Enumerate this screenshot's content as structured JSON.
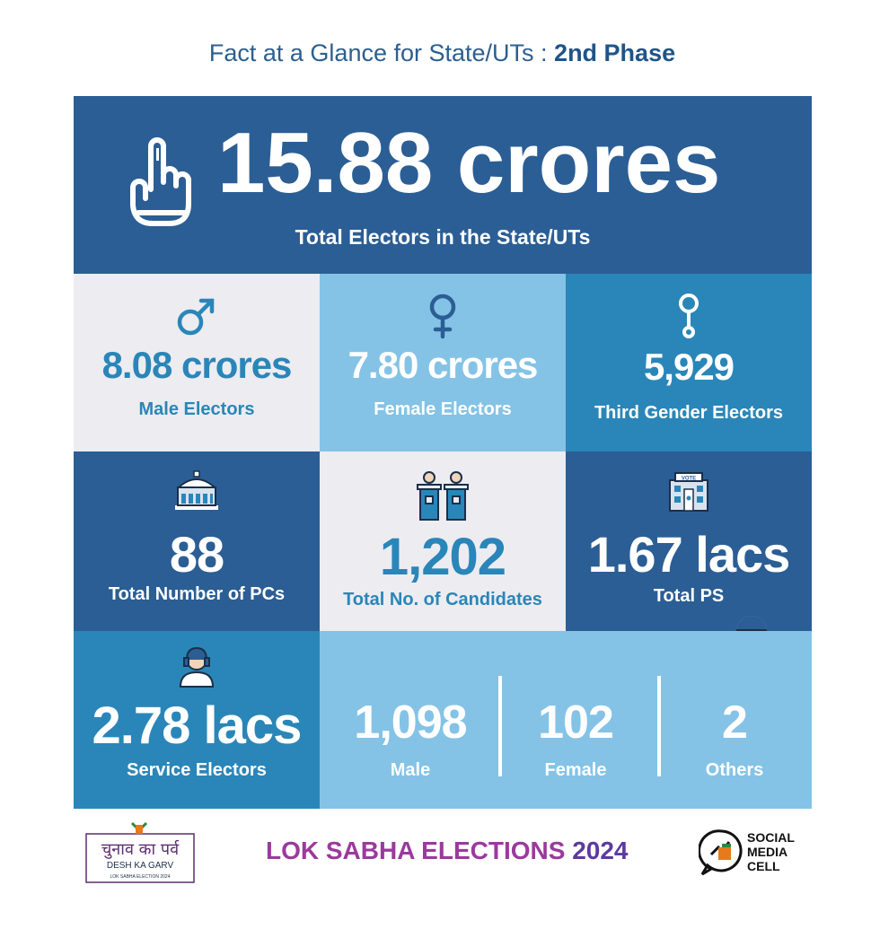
{
  "header": {
    "title_prefix": "Fact at a Glance for State/UTs : ",
    "title_bold": "2nd Phase"
  },
  "hero": {
    "value": "15.88 crores",
    "label": "Total Electors in the State/UTs",
    "icon": "voting-finger-icon"
  },
  "stats": {
    "male": {
      "value": "8.08 crores",
      "label": "Male Electors",
      "icon": "male-symbol-icon"
    },
    "female": {
      "value": "7.80 crores",
      "label": "Female Electors",
      "icon": "female-symbol-icon"
    },
    "third": {
      "value": "5,929",
      "label": "Third Gender Electors",
      "icon": "third-gender-symbol-icon"
    },
    "pcs": {
      "value": "88",
      "label": "Total Number of PCs",
      "icon": "parliament-building-icon"
    },
    "candidates": {
      "value": "1,202",
      "label": "Total No. of Candidates",
      "icon": "candidates-podium-icon"
    },
    "ps": {
      "value": "1.67 lacs",
      "label": "Total PS",
      "icon": "polling-station-icon"
    },
    "service": {
      "value": "2.78 lacs",
      "label": "Service Electors",
      "icon": "service-person-icon"
    }
  },
  "candidate_split": [
    {
      "value": "1,098",
      "label": "Male"
    },
    {
      "value": "102",
      "label": "Female"
    },
    {
      "value": "2",
      "label": "Others"
    }
  ],
  "footer": {
    "left_logo": {
      "hindi": "चुनाव का पर्व",
      "line2": "DESH KA GARV",
      "line3": "LOK SABHA ELECTION 2024"
    },
    "title_main": "LOK SABHA ELECTIONS ",
    "title_year": "2024",
    "right_logo": {
      "line1": "SOCIAL",
      "line2": "MEDIA",
      "line3": "CELL"
    }
  },
  "colors": {
    "dark_blue": "#2b5e94",
    "mid_blue": "#2a86b8",
    "light_blue": "#84c3e6",
    "light_grey": "#ececf1",
    "footer_magenta": "#9a3a9c"
  }
}
